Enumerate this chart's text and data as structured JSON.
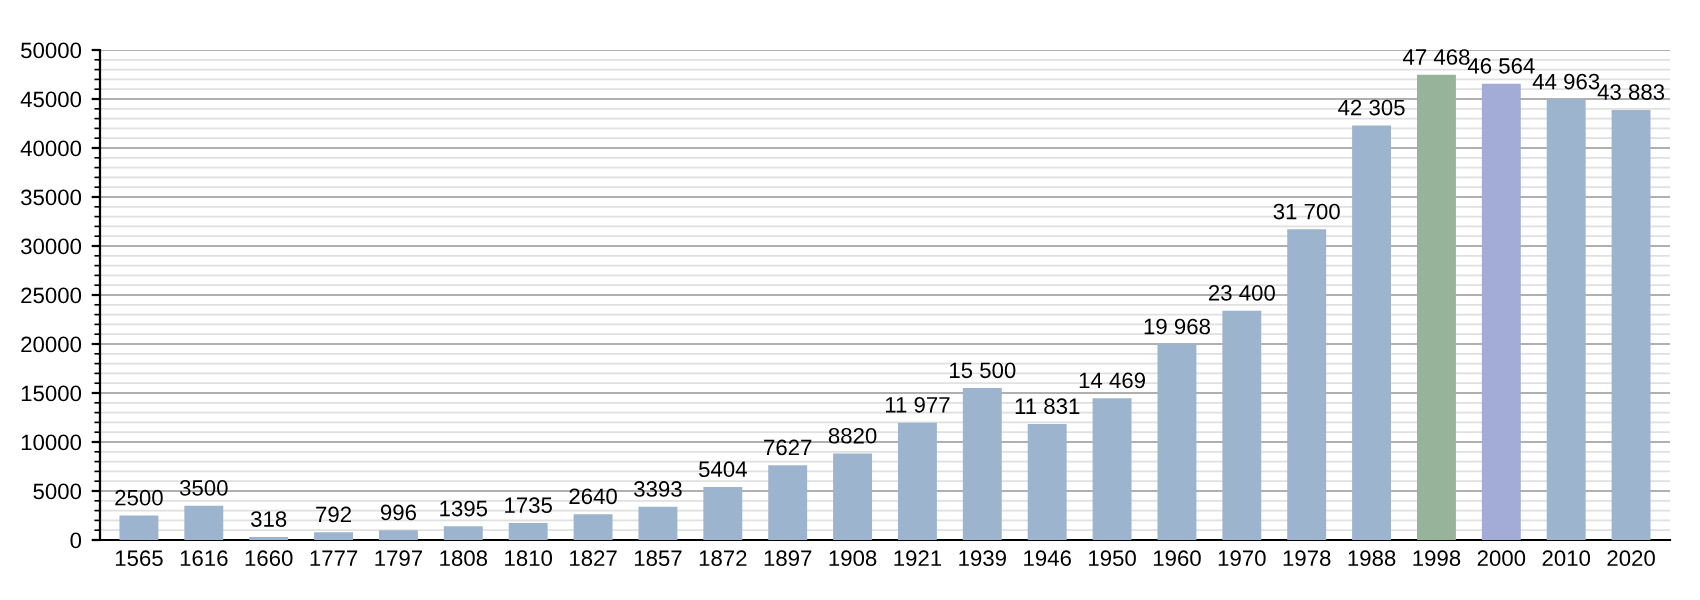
{
  "chart_data": {
    "type": "bar",
    "categories": [
      "1565",
      "1616",
      "1660",
      "1777",
      "1797",
      "1808",
      "1810",
      "1827",
      "1857",
      "1872",
      "1897",
      "1908",
      "1921",
      "1939",
      "1946",
      "1950",
      "1960",
      "1970",
      "1978",
      "1988",
      "1998",
      "2000",
      "2010",
      "2020"
    ],
    "values": [
      2500,
      3500,
      318,
      792,
      996,
      1395,
      1735,
      2640,
      3393,
      5404,
      7627,
      8820,
      11977,
      15500,
      11831,
      14469,
      19968,
      23400,
      31700,
      42305,
      47468,
      46564,
      44963,
      43883
    ],
    "value_labels": [
      "2500",
      "3500",
      "318",
      "792",
      "996",
      "1395",
      "1735",
      "2640",
      "3393",
      "5404",
      "7627",
      "8820",
      "11 977",
      "15 500",
      "11 831",
      "14 469",
      "19 968",
      "23 400",
      "31 700",
      "42 305",
      "47 468",
      "46 564",
      "44 963",
      "43 883"
    ],
    "colors": [
      "#9db4cf",
      "#9db4cf",
      "#9db4cf",
      "#9db4cf",
      "#9db4cf",
      "#9db4cf",
      "#9db4cf",
      "#9db4cf",
      "#9db4cf",
      "#9db4cf",
      "#9db4cf",
      "#9db4cf",
      "#9db4cf",
      "#9db4cf",
      "#9db4cf",
      "#9db4cf",
      "#9db4cf",
      "#9db4cf",
      "#9db4cf",
      "#9db4cf",
      "#97b39a",
      "#a3acd6",
      "#9db4cf",
      "#9db4cf"
    ],
    "ylim": [
      0,
      50000
    ],
    "yticks": [
      0,
      5000,
      10000,
      15000,
      20000,
      25000,
      30000,
      35000,
      40000,
      45000,
      50000
    ],
    "grid": "y"
  }
}
